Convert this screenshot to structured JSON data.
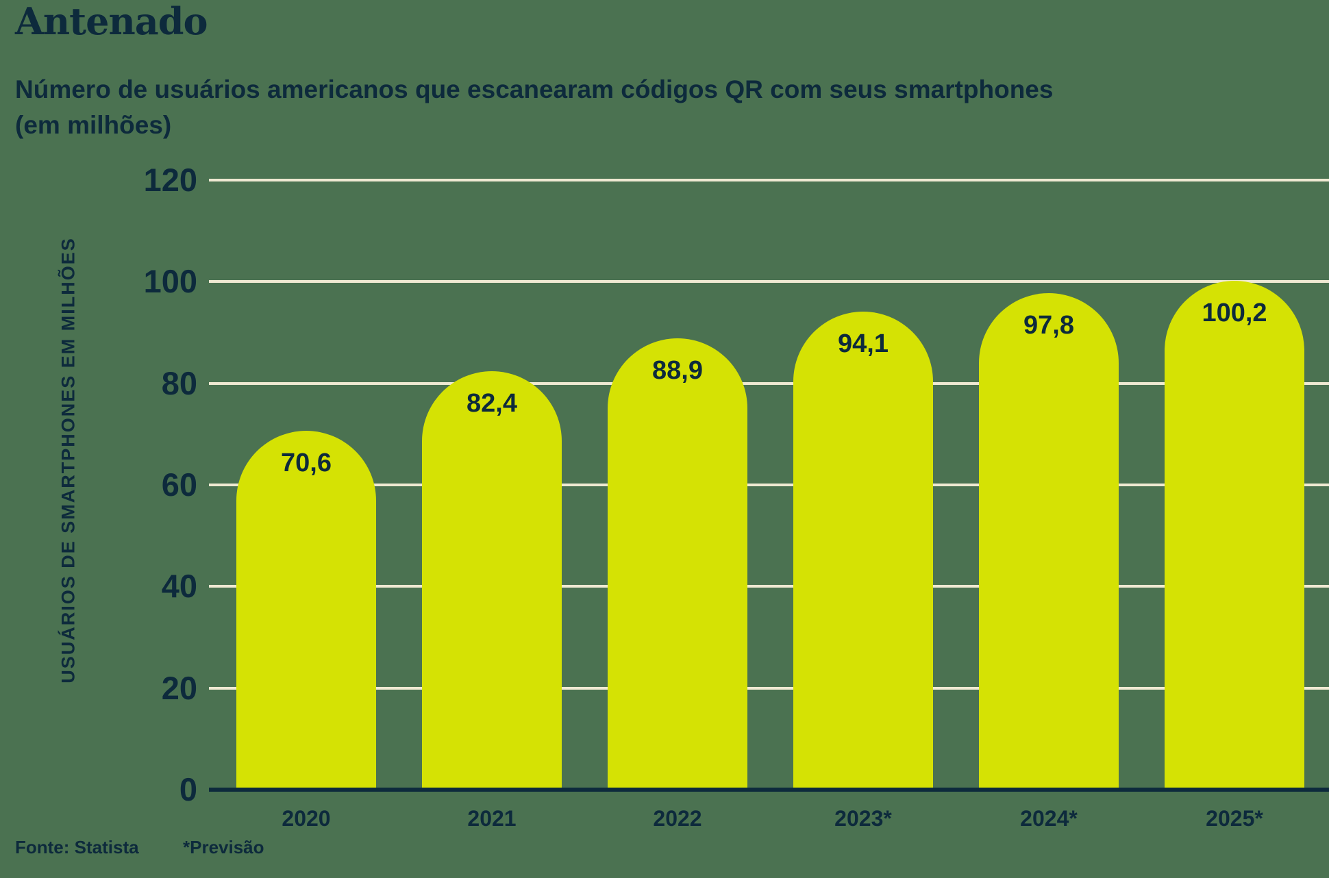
{
  "page": {
    "title": "Antenado",
    "subtitle_line1": "Número de usuários americanos que escanearam códigos QR com seus smartphones",
    "subtitle_line2": "(em milhões)",
    "source": "Fonte: Statista",
    "footnote": "*Previsão"
  },
  "colors": {
    "background": "#4B7251",
    "bar": "#D5E204",
    "text": "#0D2A3C",
    "gridline": "#EFE9D2",
    "axis": "#0D2A3C"
  },
  "chart_data": {
    "type": "bar",
    "title": "Antenado",
    "subtitle": "Número de usuários americanos que escanearam códigos QR com seus smartphones (em milhões)",
    "categories": [
      "2020",
      "2021",
      "2022",
      "2023*",
      "2024*",
      "2025*"
    ],
    "values": [
      70.6,
      82.4,
      88.9,
      94.1,
      97.8,
      100.2
    ],
    "value_labels": [
      "70,6",
      "82,4",
      "88,9",
      "94,1",
      "97,8",
      "100,2"
    ],
    "xlabel": "",
    "ylabel": "USUÁRIOS DE SMARTPHONES EM MILHÕES",
    "ylim": [
      0,
      120
    ],
    "yticks": [
      0,
      20,
      40,
      60,
      80,
      100,
      120
    ],
    "grid": true,
    "legend": false,
    "source": "Fonte: Statista",
    "footnote": "*Previsão"
  }
}
